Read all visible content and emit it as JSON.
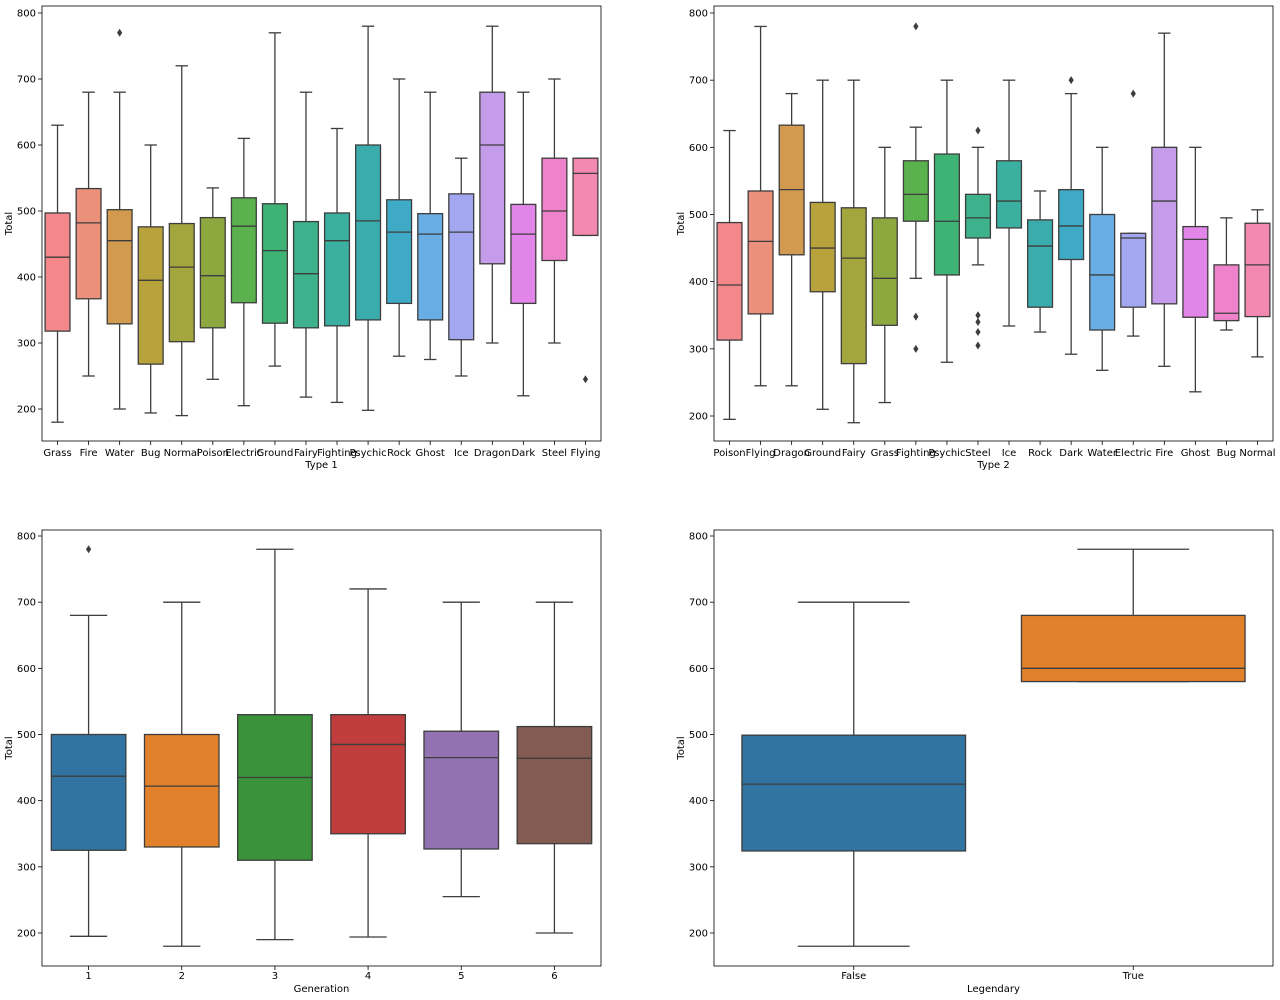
{
  "chart_data": [
    {
      "type": "box",
      "xlabel": "Type 1",
      "ylabel": "Total",
      "ylim": [
        150,
        810
      ],
      "yticks": [
        200,
        300,
        400,
        500,
        600,
        700,
        800
      ],
      "categories": [
        "Grass",
        "Fire",
        "Water",
        "Bug",
        "Normal",
        "Poison",
        "Electric",
        "Ground",
        "Fairy",
        "Fighting",
        "Psychic",
        "Rock",
        "Ghost",
        "Ice",
        "Dragon",
        "Dark",
        "Steel",
        "Flying"
      ],
      "boxes": [
        {
          "category": "Grass",
          "whisker_low": 180,
          "q1": 318,
          "median": 430,
          "q3": 497,
          "whisker_high": 630,
          "outliers": [],
          "color": "#f3878a"
        },
        {
          "category": "Fire",
          "whisker_low": 250,
          "q1": 367,
          "median": 482,
          "q3": 534,
          "whisker_high": 680,
          "outliers": [],
          "color": "#ea907b"
        },
        {
          "category": "Water",
          "whisker_low": 200,
          "q1": 329,
          "median": 455,
          "q3": 502,
          "whisker_high": 680,
          "outliers": [
            770
          ],
          "color": "#d19a4e"
        },
        {
          "category": "Bug",
          "whisker_low": 194,
          "q1": 268,
          "median": 395,
          "q3": 476,
          "whisker_high": 600,
          "outliers": [],
          "color": "#b7a23c"
        },
        {
          "category": "Normal",
          "whisker_low": 190,
          "q1": 302,
          "median": 415,
          "q3": 481,
          "whisker_high": 720,
          "outliers": [],
          "color": "#a3a63d"
        },
        {
          "category": "Poison",
          "whisker_low": 245,
          "q1": 323,
          "median": 402,
          "q3": 490,
          "whisker_high": 535,
          "outliers": [],
          "color": "#8ea840"
        },
        {
          "category": "Electric",
          "whisker_low": 205,
          "q1": 361,
          "median": 477,
          "q3": 520,
          "whisker_high": 610,
          "outliers": [],
          "color": "#5ab14d"
        },
        {
          "category": "Ground",
          "whisker_low": 265,
          "q1": 330,
          "median": 440,
          "q3": 511,
          "whisker_high": 770,
          "outliers": [],
          "color": "#3fb374"
        },
        {
          "category": "Fairy",
          "whisker_low": 218,
          "q1": 323,
          "median": 405,
          "q3": 484,
          "whisker_high": 680,
          "outliers": [],
          "color": "#3db28c"
        },
        {
          "category": "Fighting",
          "whisker_low": 210,
          "q1": 326,
          "median": 455,
          "q3": 497,
          "whisker_high": 625,
          "outliers": [],
          "color": "#3bafa0"
        },
        {
          "category": "Psychic",
          "whisker_low": 198,
          "q1": 335,
          "median": 485,
          "q3": 600,
          "whisker_high": 780,
          "outliers": [],
          "color": "#3aacac"
        },
        {
          "category": "Rock",
          "whisker_low": 280,
          "q1": 360,
          "median": 468,
          "q3": 517,
          "whisker_high": 700,
          "outliers": [],
          "color": "#3eaac6"
        },
        {
          "category": "Ghost",
          "whisker_low": 275,
          "q1": 335,
          "median": 465,
          "q3": 496,
          "whisker_high": 680,
          "outliers": [],
          "color": "#68aee5"
        },
        {
          "category": "Ice",
          "whisker_low": 250,
          "q1": 305,
          "median": 468,
          "q3": 526,
          "whisker_high": 580,
          "outliers": [],
          "color": "#a3a7f0"
        },
        {
          "category": "Dragon",
          "whisker_low": 300,
          "q1": 420,
          "median": 600,
          "q3": 680,
          "whisker_high": 780,
          "outliers": [],
          "color": "#c59ce9"
        },
        {
          "category": "Dark",
          "whisker_low": 220,
          "q1": 360,
          "median": 465,
          "q3": 510,
          "whisker_high": 680,
          "outliers": [],
          "color": "#e185e8"
        },
        {
          "category": "Steel",
          "whisker_low": 300,
          "q1": 425,
          "median": 500,
          "q3": 580,
          "whisker_high": 700,
          "outliers": [],
          "color": "#ef83cb"
        },
        {
          "category": "Flying",
          "whisker_low": 463,
          "q1": 463,
          "median": 557,
          "q3": 580,
          "whisker_high": 580,
          "outliers": [
            245
          ],
          "color": "#f388b1"
        }
      ]
    },
    {
      "type": "box",
      "xlabel": "Type 2",
      "ylabel": "Total",
      "ylim": [
        160,
        810
      ],
      "yticks": [
        200,
        300,
        400,
        500,
        600,
        700,
        800
      ],
      "categories": [
        "Poison",
        "Flying",
        "Dragon",
        "Ground",
        "Fairy",
        "Grass",
        "Fighting",
        "Psychic",
        "Steel",
        "Ice",
        "Rock",
        "Dark",
        "Water",
        "Electric",
        "Fire",
        "Ghost",
        "Bug",
        "Normal"
      ],
      "boxes": [
        {
          "category": "Poison",
          "whisker_low": 195,
          "q1": 313,
          "median": 395,
          "q3": 488,
          "whisker_high": 625,
          "outliers": [],
          "color": "#f3878a"
        },
        {
          "category": "Flying",
          "whisker_low": 245,
          "q1": 352,
          "median": 460,
          "q3": 535,
          "whisker_high": 780,
          "outliers": [],
          "color": "#ea907b"
        },
        {
          "category": "Dragon",
          "whisker_low": 245,
          "q1": 440,
          "median": 537,
          "q3": 633,
          "whisker_high": 680,
          "outliers": [],
          "color": "#d19a4e"
        },
        {
          "category": "Ground",
          "whisker_low": 210,
          "q1": 385,
          "median": 450,
          "q3": 518,
          "whisker_high": 700,
          "outliers": [],
          "color": "#b7a23c"
        },
        {
          "category": "Fairy",
          "whisker_low": 190,
          "q1": 278,
          "median": 435,
          "q3": 510,
          "whisker_high": 700,
          "outliers": [],
          "color": "#a3a63d"
        },
        {
          "category": "Grass",
          "whisker_low": 220,
          "q1": 335,
          "median": 405,
          "q3": 495,
          "whisker_high": 600,
          "outliers": [],
          "color": "#8ea840"
        },
        {
          "category": "Fighting",
          "whisker_low": 405,
          "q1": 490,
          "median": 530,
          "q3": 580,
          "whisker_high": 630,
          "outliers": [
            300,
            348,
            780
          ],
          "color": "#5ab14d"
        },
        {
          "category": "Psychic",
          "whisker_low": 280,
          "q1": 410,
          "median": 490,
          "q3": 590,
          "whisker_high": 700,
          "outliers": [],
          "color": "#3fb374"
        },
        {
          "category": "Steel",
          "whisker_low": 425,
          "q1": 465,
          "median": 495,
          "q3": 530,
          "whisker_high": 600,
          "outliers": [
            305,
            325,
            340,
            350,
            625
          ],
          "color": "#3db28c"
        },
        {
          "category": "Ice",
          "whisker_low": 334,
          "q1": 480,
          "median": 520,
          "q3": 580,
          "whisker_high": 700,
          "outliers": [],
          "color": "#3bafa0"
        },
        {
          "category": "Rock",
          "whisker_low": 325,
          "q1": 362,
          "median": 453,
          "q3": 492,
          "whisker_high": 535,
          "outliers": [],
          "color": "#3aacac"
        },
        {
          "category": "Dark",
          "whisker_low": 292,
          "q1": 433,
          "median": 483,
          "q3": 537,
          "whisker_high": 680,
          "outliers": [
            700
          ],
          "color": "#3eaac6"
        },
        {
          "category": "Water",
          "whisker_low": 268,
          "q1": 328,
          "median": 410,
          "q3": 500,
          "whisker_high": 600,
          "outliers": [],
          "color": "#68aee5"
        },
        {
          "category": "Electric",
          "whisker_low": 319,
          "q1": 362,
          "median": 465,
          "q3": 472,
          "whisker_high": 472,
          "outliers": [
            680
          ],
          "color": "#a3a7f0"
        },
        {
          "category": "Fire",
          "whisker_low": 274,
          "q1": 367,
          "median": 520,
          "q3": 600,
          "whisker_high": 770,
          "outliers": [],
          "color": "#c59ce9"
        },
        {
          "category": "Ghost",
          "whisker_low": 236,
          "q1": 347,
          "median": 463,
          "q3": 482,
          "whisker_high": 600,
          "outliers": [],
          "color": "#e185e8"
        },
        {
          "category": "Bug",
          "whisker_low": 328,
          "q1": 342,
          "median": 353,
          "q3": 425,
          "whisker_high": 495,
          "outliers": [],
          "color": "#ef83cb"
        },
        {
          "category": "Normal",
          "whisker_low": 288,
          "q1": 348,
          "median": 425,
          "q3": 487,
          "whisker_high": 507,
          "outliers": [],
          "color": "#f388b1"
        }
      ]
    },
    {
      "type": "box",
      "xlabel": "Generation",
      "ylabel": "Total",
      "ylim": [
        150,
        810
      ],
      "yticks": [
        200,
        300,
        400,
        500,
        600,
        700,
        800
      ],
      "categories": [
        "1",
        "2",
        "3",
        "4",
        "5",
        "6"
      ],
      "boxes": [
        {
          "category": "1",
          "whisker_low": 195,
          "q1": 325,
          "median": 437,
          "q3": 500,
          "whisker_high": 680,
          "outliers": [
            780
          ],
          "color": "#3274a1"
        },
        {
          "category": "2",
          "whisker_low": 180,
          "q1": 330,
          "median": 422,
          "q3": 500,
          "whisker_high": 700,
          "outliers": [],
          "color": "#e1812c"
        },
        {
          "category": "3",
          "whisker_low": 190,
          "q1": 310,
          "median": 435,
          "q3": 530,
          "whisker_high": 780,
          "outliers": [],
          "color": "#3a923a"
        },
        {
          "category": "4",
          "whisker_low": 194,
          "q1": 350,
          "median": 485,
          "q3": 530,
          "whisker_high": 720,
          "outliers": [],
          "color": "#c03d3e"
        },
        {
          "category": "5",
          "whisker_low": 255,
          "q1": 327,
          "median": 465,
          "q3": 505,
          "whisker_high": 700,
          "outliers": [],
          "color": "#9372b2"
        },
        {
          "category": "6",
          "whisker_low": 200,
          "q1": 335,
          "median": 464,
          "q3": 512,
          "whisker_high": 700,
          "outliers": [],
          "color": "#845b53"
        }
      ]
    },
    {
      "type": "box",
      "xlabel": "Legendary",
      "ylabel": "Total",
      "ylim": [
        150,
        810
      ],
      "yticks": [
        200,
        300,
        400,
        500,
        600,
        700,
        800
      ],
      "categories": [
        "False",
        "True"
      ],
      "boxes": [
        {
          "category": "False",
          "whisker_low": 180,
          "q1": 324,
          "median": 425,
          "q3": 499,
          "whisker_high": 700,
          "outliers": [],
          "color": "#3274a1"
        },
        {
          "category": "True",
          "whisker_low": 580,
          "q1": 580,
          "median": 600,
          "q3": 680,
          "whisker_high": 780,
          "outliers": [],
          "color": "#e1812c"
        }
      ]
    }
  ]
}
